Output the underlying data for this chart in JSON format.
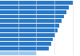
{
  "values": [
    100,
    95,
    91,
    88,
    85,
    82,
    79,
    76,
    73,
    70,
    67,
    50
  ],
  "bar_colors": [
    "#2979c8",
    "#2979c8",
    "#2979c8",
    "#2979c8",
    "#2979c8",
    "#2979c8",
    "#2979c8",
    "#2979c8",
    "#2979c8",
    "#2979c8",
    "#2979c8",
    "#9fc8f0"
  ],
  "background_color": "#ffffff",
  "xlim": [
    0,
    108
  ],
  "bar_height": 0.82,
  "grid_color": "#e0e0e0",
  "grid_values": [
    25,
    50,
    75,
    100
  ]
}
